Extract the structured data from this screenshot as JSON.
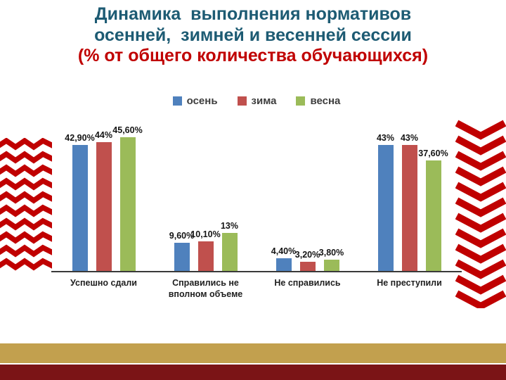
{
  "title": {
    "line1": "Динамика  выполнения нормативов",
    "line2": "осенней,  зимней и весенней сессии",
    "line3": "(% от общего количества обучающихся)"
  },
  "colors": {
    "title_text": "#1d5b73",
    "title_accent": "#c00000",
    "decoration_red": "#c00000",
    "stripe_gold": "#c2a04e",
    "stripe_red": "#7b1416",
    "axis": "#3a3a3a"
  },
  "chart_data": {
    "type": "bar",
    "title": "Динамика выполнения нормативов осенней, зимней и весенней сессии (% от общего количества обучающихся)",
    "categories": [
      "Успешно сдали",
      "Справились не\nвполном объеме",
      "Не справились",
      "Не преступили"
    ],
    "series": [
      {
        "name": "осень",
        "color": "#4f81bd",
        "values": [
          42.9,
          9.6,
          4.4,
          43
        ],
        "labels": [
          "42,90%",
          "9,60%",
          "4,40%",
          "43%"
        ]
      },
      {
        "name": "зима",
        "color": "#c0504d",
        "values": [
          44,
          10.1,
          3.2,
          43
        ],
        "labels": [
          "44%",
          "10,10%",
          "3,20%",
          "43%"
        ]
      },
      {
        "name": "весна",
        "color": "#9bbb59",
        "values": [
          45.6,
          13,
          3.8,
          37.6
        ],
        "labels": [
          "45,60%",
          "13%",
          "3,80%",
          "37,60%"
        ]
      }
    ],
    "xlabel": "",
    "ylabel": "",
    "ylim": [
      0,
      50
    ],
    "grid": false,
    "legend_position": "top",
    "value_labels": "above bars, percent with comma decimals"
  }
}
